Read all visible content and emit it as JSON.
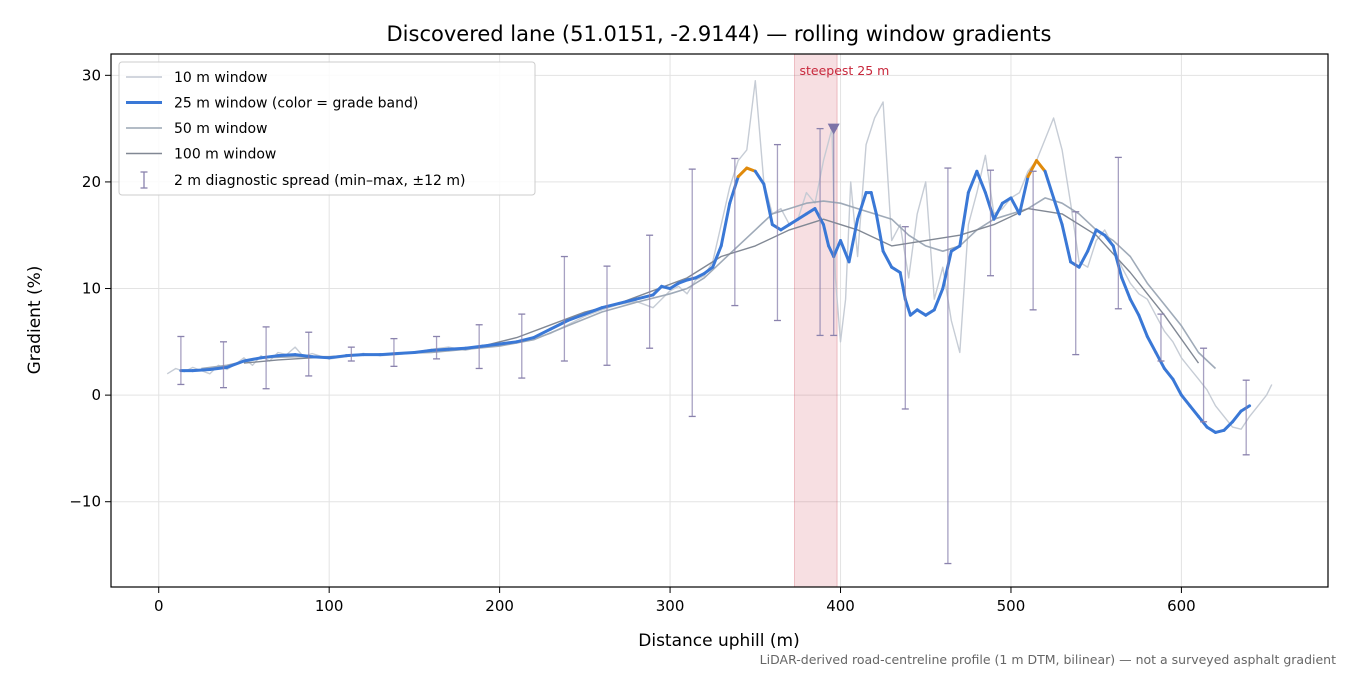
{
  "chart_data": {
    "type": "line",
    "title": "Discovered lane (51.0151, -2.9144) — rolling window gradients",
    "xlabel": "Distance uphill (m)",
    "ylabel": "Gradient (%)",
    "xlim": [
      -28,
      686
    ],
    "ylim": [
      -18,
      32
    ],
    "xticks": [
      0,
      100,
      200,
      300,
      400,
      500,
      600
    ],
    "yticks": [
      -10,
      0,
      10,
      20,
      30
    ],
    "xtick_labels": [
      "0",
      "100",
      "200",
      "300",
      "400",
      "500",
      "600"
    ],
    "ytick_labels": [
      "−10",
      "0",
      "10",
      "20",
      "30"
    ],
    "grid": true,
    "legend_position": "upper-left",
    "footnote": "LiDAR-derived road-centreline profile (1 m DTM, bilinear) — not a surveyed asphalt gradient",
    "annotation": {
      "text": "steepest 25 m",
      "x_range": [
        373,
        398
      ],
      "marker_x": 396,
      "marker_y": 25,
      "color": "#c8283c"
    },
    "grade_band_colors": {
      "normal": "#3a78d6",
      "steep": "#e08a0b",
      "threshold": 20
    },
    "series": [
      {
        "name": "10 m window",
        "style": "thin-light",
        "color": "#c3c9d3",
        "x": [
          5,
          10,
          15,
          20,
          25,
          30,
          35,
          40,
          45,
          50,
          55,
          60,
          65,
          70,
          75,
          80,
          85,
          90,
          100,
          110,
          120,
          130,
          140,
          150,
          160,
          170,
          180,
          190,
          200,
          210,
          220,
          230,
          240,
          250,
          260,
          270,
          280,
          290,
          295,
          300,
          305,
          310,
          315,
          320,
          325,
          330,
          335,
          340,
          345,
          350,
          355,
          360,
          365,
          370,
          375,
          380,
          385,
          390,
          395,
          397,
          400,
          403,
          406,
          410,
          415,
          420,
          425,
          430,
          435,
          440,
          445,
          450,
          455,
          460,
          465,
          470,
          475,
          480,
          485,
          490,
          495,
          500,
          505,
          510,
          515,
          520,
          525,
          530,
          535,
          540,
          545,
          550,
          555,
          560,
          565,
          570,
          575,
          580,
          585,
          590,
          595,
          600,
          605,
          610,
          615,
          620,
          625,
          630,
          635,
          640,
          645,
          650,
          653
        ],
        "y": [
          2.0,
          2.5,
          2.2,
          2.6,
          2.3,
          2.0,
          2.8,
          2.4,
          2.9,
          3.5,
          2.8,
          3.7,
          3.2,
          4.0,
          3.8,
          4.5,
          3.6,
          3.9,
          3.4,
          3.6,
          3.9,
          3.7,
          3.8,
          4.0,
          4.3,
          4.5,
          4.2,
          4.6,
          4.7,
          4.9,
          5.3,
          5.8,
          6.6,
          7.4,
          8.0,
          8.5,
          8.8,
          8.2,
          9.0,
          9.8,
          10.2,
          9.5,
          10.8,
          11.2,
          12.5,
          16.0,
          19.5,
          22.0,
          23.0,
          29.5,
          20.0,
          17.0,
          17.5,
          16.0,
          16.5,
          19.0,
          18.0,
          22.0,
          25.0,
          11.0,
          5.0,
          9.0,
          20.0,
          13.0,
          23.5,
          26.0,
          27.5,
          14.5,
          16.0,
          11.0,
          17.0,
          20.0,
          9.0,
          12.0,
          7.0,
          4.0,
          16.0,
          19.0,
          22.5,
          17.0,
          17.5,
          18.5,
          19.0,
          21.0,
          22.0,
          24.0,
          26.0,
          23.0,
          18.0,
          12.5,
          12.0,
          14.5,
          15.5,
          14.0,
          12.0,
          10.5,
          9.5,
          9.0,
          7.5,
          6.0,
          5.0,
          3.5,
          2.5,
          1.5,
          0.5,
          -1.0,
          -2.0,
          -3.0,
          -3.2,
          -2.0,
          -1.0,
          0.0,
          1.0
        ]
      },
      {
        "name": "25 m window (color = grade band)",
        "style": "thick-colored",
        "color": "#3a78d6",
        "x": [
          13,
          20,
          30,
          40,
          50,
          60,
          70,
          80,
          90,
          100,
          110,
          120,
          130,
          140,
          150,
          160,
          170,
          180,
          190,
          200,
          210,
          220,
          230,
          240,
          250,
          260,
          270,
          280,
          290,
          295,
          300,
          305,
          310,
          315,
          320,
          325,
          330,
          335,
          340,
          345,
          350,
          355,
          360,
          365,
          370,
          375,
          380,
          385,
          390,
          393,
          396,
          400,
          405,
          410,
          415,
          418,
          421,
          425,
          430,
          435,
          438,
          441,
          445,
          450,
          455,
          460,
          465,
          470,
          475,
          480,
          485,
          490,
          495,
          500,
          505,
          510,
          515,
          520,
          525,
          530,
          535,
          540,
          545,
          550,
          555,
          560,
          565,
          570,
          575,
          580,
          585,
          590,
          595,
          600,
          605,
          610,
          615,
          620,
          625,
          630,
          635,
          640
        ],
        "y": [
          2.3,
          2.3,
          2.4,
          2.6,
          3.2,
          3.5,
          3.7,
          3.8,
          3.6,
          3.5,
          3.7,
          3.8,
          3.8,
          3.9,
          4.0,
          4.2,
          4.3,
          4.4,
          4.6,
          4.8,
          5.0,
          5.4,
          6.2,
          7.0,
          7.6,
          8.2,
          8.6,
          9.0,
          9.4,
          10.2,
          10.0,
          10.5,
          10.8,
          11.0,
          11.4,
          12.0,
          14.0,
          18.0,
          20.5,
          21.3,
          21.0,
          19.8,
          16.0,
          15.5,
          16.0,
          16.5,
          17.0,
          17.5,
          16.0,
          14.0,
          13.0,
          14.5,
          12.5,
          16.5,
          19.0,
          19.0,
          17.0,
          13.5,
          12.0,
          11.5,
          9.0,
          7.5,
          8.0,
          7.5,
          8.0,
          10.0,
          13.5,
          14.0,
          19.0,
          21.0,
          19.0,
          16.5,
          18.0,
          18.5,
          17.0,
          20.5,
          22.0,
          21.0,
          18.5,
          16.0,
          12.5,
          12.0,
          13.5,
          15.5,
          15.0,
          14.0,
          11.0,
          9.0,
          7.5,
          5.5,
          4.0,
          2.5,
          1.5,
          0.0,
          -1.0,
          -2.0,
          -3.0,
          -3.5,
          -3.3,
          -2.5,
          -1.5,
          -1.0
        ]
      },
      {
        "name": "50 m window",
        "style": "mid",
        "color": "#9aa5b4",
        "x": [
          25,
          40,
          60,
          80,
          100,
          120,
          140,
          160,
          180,
          200,
          220,
          240,
          260,
          280,
          300,
          310,
          320,
          330,
          340,
          350,
          360,
          370,
          380,
          390,
          400,
          410,
          420,
          430,
          440,
          450,
          460,
          470,
          480,
          490,
          500,
          510,
          520,
          530,
          540,
          550,
          560,
          570,
          580,
          590,
          600,
          610,
          620
        ],
        "y": [
          2.5,
          2.8,
          3.5,
          3.6,
          3.6,
          3.8,
          3.9,
          4.0,
          4.3,
          4.6,
          5.2,
          6.5,
          7.8,
          8.7,
          9.5,
          10.0,
          11.0,
          12.5,
          14.0,
          15.5,
          17.0,
          17.5,
          18.0,
          18.2,
          18.0,
          17.5,
          17.0,
          16.5,
          15.0,
          14.0,
          13.5,
          14.0,
          15.5,
          16.5,
          17.0,
          17.5,
          18.5,
          18.0,
          17.0,
          15.5,
          14.5,
          13.0,
          10.5,
          8.5,
          6.5,
          4.0,
          2.5
        ]
      },
      {
        "name": "100 m window",
        "style": "dark",
        "color": "#818894",
        "x": [
          50,
          70,
          90,
          110,
          130,
          150,
          170,
          190,
          210,
          230,
          250,
          270,
          290,
          310,
          330,
          350,
          370,
          390,
          410,
          430,
          450,
          470,
          490,
          510,
          530,
          550,
          570,
          590,
          610
        ],
        "y": [
          3.0,
          3.3,
          3.5,
          3.7,
          3.8,
          4.0,
          4.3,
          4.6,
          5.4,
          6.6,
          7.8,
          8.6,
          9.8,
          11.0,
          13.0,
          14.0,
          15.5,
          16.5,
          15.5,
          14.0,
          14.5,
          15.0,
          16.0,
          17.5,
          17.0,
          15.0,
          11.5,
          7.5,
          3.0
        ]
      }
    ],
    "diagnostic_spread": {
      "name": "2 m diagnostic spread (min–max, ±12 m)",
      "color": "#8a82ad",
      "points": [
        {
          "x": 13,
          "min": 1.0,
          "max": 5.5
        },
        {
          "x": 38,
          "min": 0.7,
          "max": 5.0
        },
        {
          "x": 63,
          "min": 0.6,
          "max": 6.4
        },
        {
          "x": 88,
          "min": 1.8,
          "max": 5.9
        },
        {
          "x": 113,
          "min": 3.2,
          "max": 4.5
        },
        {
          "x": 138,
          "min": 2.7,
          "max": 5.3
        },
        {
          "x": 163,
          "min": 3.4,
          "max": 5.5
        },
        {
          "x": 188,
          "min": 2.5,
          "max": 6.6
        },
        {
          "x": 213,
          "min": 1.6,
          "max": 7.6
        },
        {
          "x": 238,
          "min": 3.2,
          "max": 13.0
        },
        {
          "x": 263,
          "min": 2.8,
          "max": 12.1
        },
        {
          "x": 288,
          "min": 4.4,
          "max": 15.0
        },
        {
          "x": 313,
          "min": -2.0,
          "max": 21.2
        },
        {
          "x": 338,
          "min": 8.4,
          "max": 22.2
        },
        {
          "x": 363,
          "min": 7.0,
          "max": 23.5
        },
        {
          "x": 388,
          "min": 5.6,
          "max": 25.0
        },
        {
          "x": 396,
          "min": 5.6,
          "max": 25.0
        },
        {
          "x": 438,
          "min": -1.3,
          "max": 15.8
        },
        {
          "x": 463,
          "min": -15.8,
          "max": 21.3
        },
        {
          "x": 488,
          "min": 11.2,
          "max": 21.1
        },
        {
          "x": 513,
          "min": 8.0,
          "max": 21.0
        },
        {
          "x": 538,
          "min": 3.8,
          "max": 17.2
        },
        {
          "x": 563,
          "min": 8.1,
          "max": 22.3
        },
        {
          "x": 588,
          "min": 3.2,
          "max": 7.6
        },
        {
          "x": 613,
          "min": -2.5,
          "max": 4.4
        },
        {
          "x": 638,
          "min": -5.6,
          "max": 1.4
        }
      ]
    }
  }
}
